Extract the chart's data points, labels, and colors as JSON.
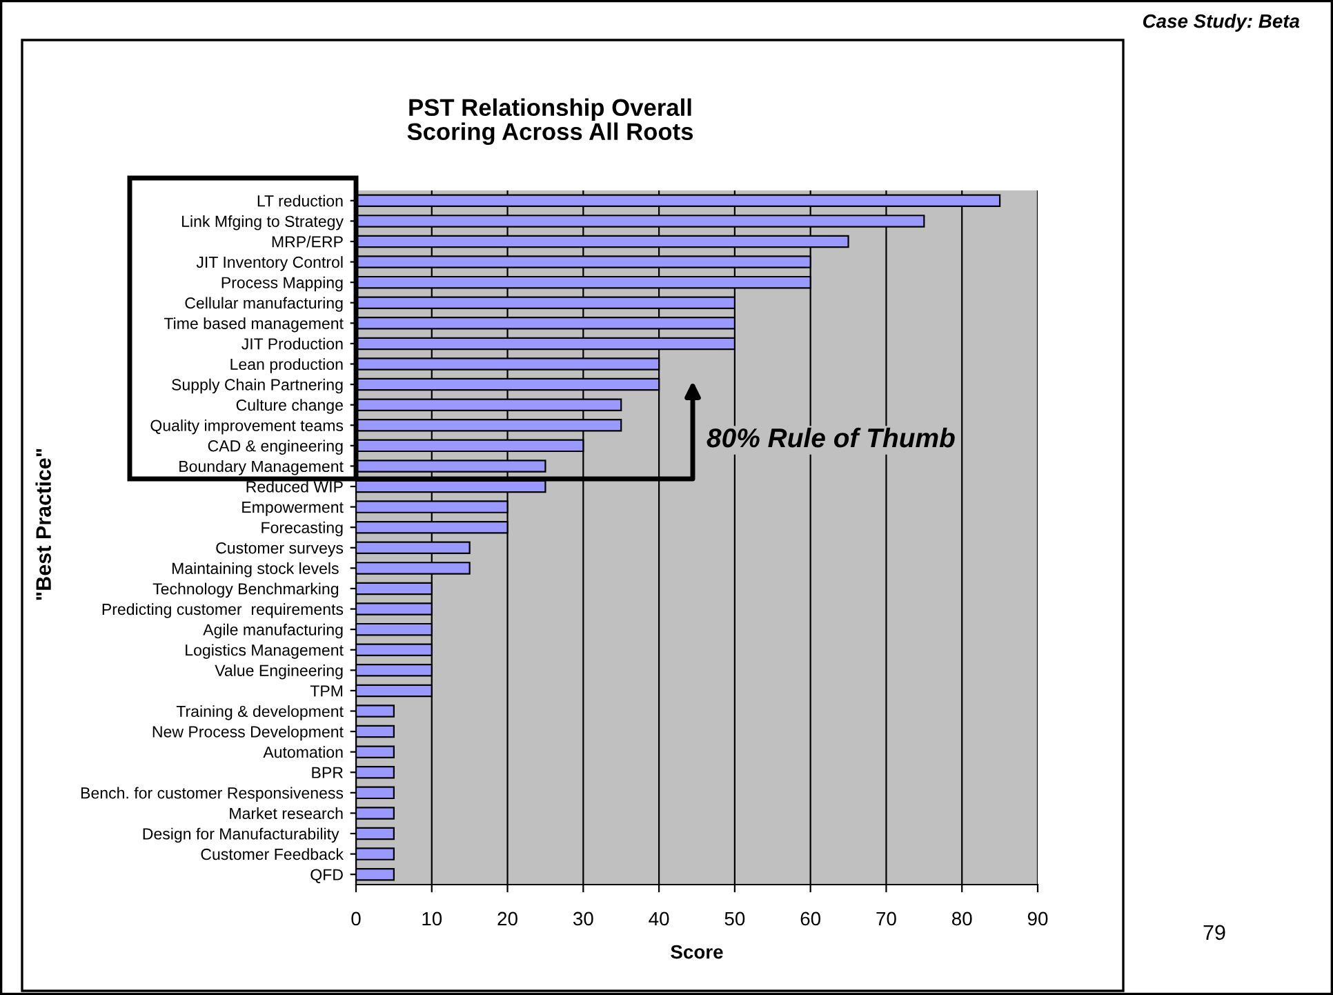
{
  "chart_data": {
    "type": "bar",
    "orientation": "horizontal",
    "title": "PST Relationship Overall\nScoring Across All Roots",
    "xlabel": "Score",
    "ylabel": "\"Best Practice\"",
    "categories": [
      "LT reduction",
      "Link Mfging to Strategy",
      "MRP/ERP",
      "JIT Inventory Control",
      "Process Mapping",
      "Cellular manufacturing",
      "Time based management",
      "JIT Production",
      "Lean production",
      "Supply Chain Partnering",
      "Culture change",
      "Quality improvement teams",
      "CAD & engineering",
      "Boundary Management",
      "Reduced WIP",
      "Empowerment",
      "Forecasting",
      "Customer surveys",
      "Maintaining stock levels ",
      "Technology Benchmarking ",
      "Predicting customer  requirements",
      "Agile manufacturing",
      "Logistics Management",
      "Value Engineering",
      "TPM",
      "Training & development",
      "New Process Development",
      "Automation",
      "BPR",
      "Bench. for customer Responsiveness",
      "Market research",
      "Design for Manufacturability ",
      "Customer Feedback",
      "QFD"
    ],
    "values": [
      85,
      75,
      65,
      60,
      60,
      50,
      50,
      50,
      40,
      40,
      35,
      35,
      30,
      25,
      25,
      20,
      20,
      15,
      15,
      10,
      10,
      10,
      10,
      10,
      10,
      5,
      5,
      5,
      5,
      5,
      5,
      5,
      5,
      5
    ],
    "color": "#9999ff",
    "xlim": [
      0,
      90
    ],
    "xticks": [
      0,
      10,
      20,
      30,
      40,
      50,
      60,
      70,
      80,
      90
    ],
    "grid": "x",
    "legend": false,
    "annotations": [
      "Case Study: Beta",
      "80% Rule of Thumb",
      "79"
    ]
  }
}
